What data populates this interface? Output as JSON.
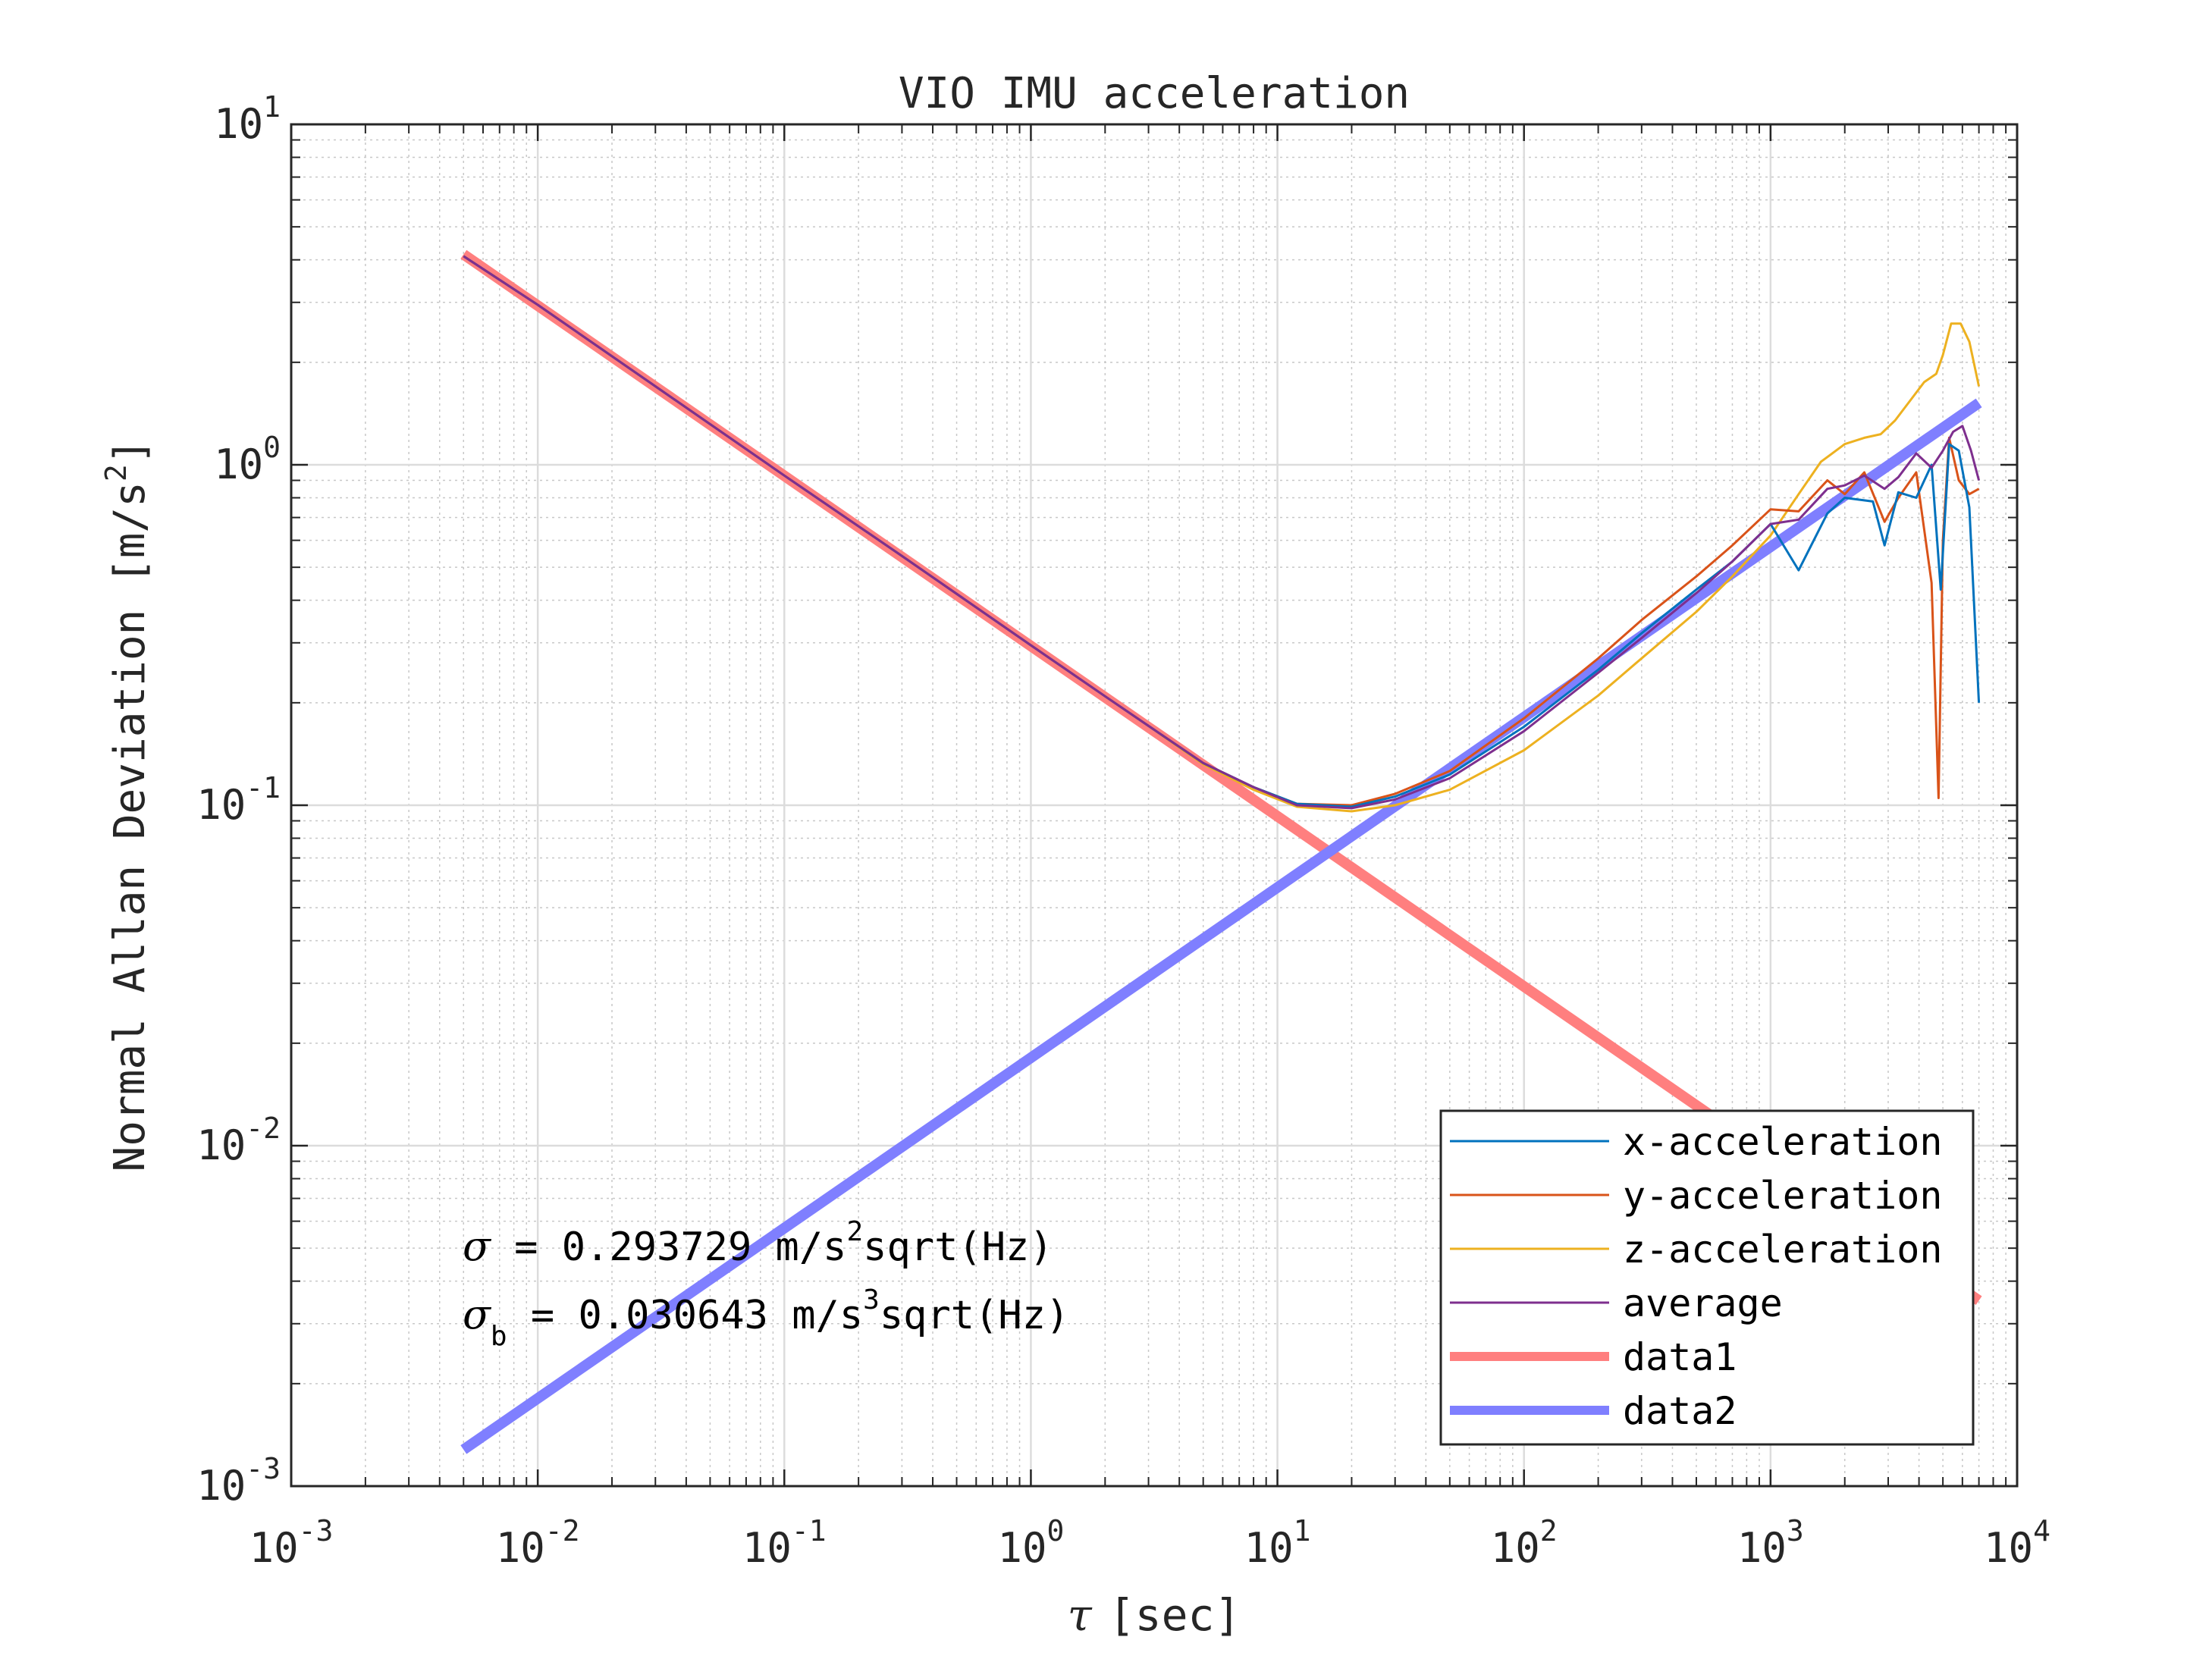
{
  "chart_data": {
    "type": "line",
    "title": "VIO IMU acceleration",
    "xlabel_symbol": "τ",
    "xlabel": "[sec]",
    "ylabel": "Normal Allan Deviation [m/s",
    "ylabel_sup": "2",
    "ylabel_end": "]",
    "x_scale": "log",
    "y_scale": "log",
    "xlim": [
      0.001,
      10000
    ],
    "ylim": [
      0.001,
      10
    ],
    "grid": true,
    "minor_grid": true,
    "legend_position": "bottom-right",
    "x_ticks": [
      {
        "base": "10",
        "exp": "-3",
        "value": 0.001
      },
      {
        "base": "10",
        "exp": "-2",
        "value": 0.01
      },
      {
        "base": "10",
        "exp": "-1",
        "value": 0.1
      },
      {
        "base": "10",
        "exp": "0",
        "value": 1
      },
      {
        "base": "10",
        "exp": "1",
        "value": 10
      },
      {
        "base": "10",
        "exp": "2",
        "value": 100
      },
      {
        "base": "10",
        "exp": "3",
        "value": 1000
      },
      {
        "base": "10",
        "exp": "4",
        "value": 10000
      }
    ],
    "y_ticks": [
      {
        "base": "10",
        "exp": "-3",
        "value": 0.001
      },
      {
        "base": "10",
        "exp": "-2",
        "value": 0.01
      },
      {
        "base": "10",
        "exp": "-1",
        "value": 0.1
      },
      {
        "base": "10",
        "exp": "0",
        "value": 1
      },
      {
        "base": "10",
        "exp": "1",
        "value": 10
      }
    ],
    "annotations": [
      {
        "symbol": "σ",
        "sub": "",
        "text1": " = 0.293729 m/s",
        "sup": "2",
        "text2": "sqrt(Hz)"
      },
      {
        "symbol": "σ",
        "sub": "b",
        "text1": " = 0.030643 m/s",
        "sup": "3",
        "text2": "sqrt(Hz)"
      }
    ],
    "series": [
      {
        "name": "x-acceleration",
        "color": "#0072bd",
        "x": [
          0.005,
          0.01,
          0.03,
          0.1,
          0.3,
          1,
          2,
          3,
          5,
          8,
          12,
          20,
          30,
          50,
          100,
          200,
          300,
          500,
          700,
          1000,
          1300,
          1700,
          2000,
          2600,
          2900,
          3300,
          3900,
          4500,
          4900,
          5300,
          5800,
          6400,
          7000
        ],
        "y": [
          4.1,
          2.95,
          1.7,
          0.93,
          0.54,
          0.295,
          0.209,
          0.171,
          0.133,
          0.113,
          0.101,
          0.099,
          0.106,
          0.123,
          0.17,
          0.25,
          0.32,
          0.43,
          0.52,
          0.67,
          0.49,
          0.72,
          0.8,
          0.78,
          0.58,
          0.83,
          0.8,
          1.0,
          0.43,
          1.15,
          1.1,
          0.75,
          0.2
        ]
      },
      {
        "name": "y-acceleration",
        "color": "#d95319",
        "x": [
          0.005,
          0.01,
          0.03,
          0.1,
          0.3,
          1,
          2,
          3,
          5,
          8,
          12,
          20,
          30,
          50,
          100,
          200,
          300,
          500,
          700,
          1000,
          1300,
          1700,
          2000,
          2400,
          2900,
          3300,
          3900,
          4500,
          4800,
          5000,
          5300,
          5800,
          6400,
          7000
        ],
        "y": [
          4.1,
          2.95,
          1.7,
          0.93,
          0.54,
          0.295,
          0.209,
          0.171,
          0.133,
          0.113,
          0.101,
          0.1,
          0.108,
          0.126,
          0.18,
          0.27,
          0.35,
          0.47,
          0.58,
          0.74,
          0.73,
          0.9,
          0.82,
          0.95,
          0.68,
          0.8,
          0.95,
          0.45,
          0.105,
          0.6,
          1.2,
          0.9,
          0.82,
          0.85
        ]
      },
      {
        "name": "z-acceleration",
        "color": "#edb120",
        "x": [
          0.005,
          0.01,
          0.03,
          0.1,
          0.3,
          1,
          2,
          3,
          5,
          8,
          12,
          20,
          30,
          50,
          100,
          200,
          300,
          500,
          700,
          1000,
          1300,
          1600,
          2000,
          2400,
          2800,
          3200,
          3700,
          4200,
          4700,
          5000,
          5400,
          5900,
          6400,
          7000
        ],
        "y": [
          4.1,
          2.95,
          1.7,
          0.93,
          0.54,
          0.295,
          0.209,
          0.171,
          0.132,
          0.111,
          0.099,
          0.096,
          0.1,
          0.111,
          0.145,
          0.21,
          0.27,
          0.37,
          0.47,
          0.62,
          0.82,
          1.02,
          1.15,
          1.2,
          1.23,
          1.35,
          1.55,
          1.75,
          1.85,
          2.1,
          2.6,
          2.6,
          2.3,
          1.7
        ]
      },
      {
        "name": "average",
        "color": "#7e2f8e",
        "x": [
          0.005,
          0.01,
          0.03,
          0.1,
          0.3,
          1,
          2,
          3,
          5,
          8,
          12,
          20,
          30,
          50,
          100,
          200,
          300,
          500,
          700,
          1000,
          1300,
          1700,
          2000,
          2400,
          2900,
          3300,
          3900,
          4500,
          5000,
          5500,
          6000,
          6500,
          7000
        ],
        "y": [
          4.1,
          2.95,
          1.7,
          0.93,
          0.54,
          0.295,
          0.209,
          0.171,
          0.133,
          0.113,
          0.1,
          0.098,
          0.104,
          0.12,
          0.165,
          0.245,
          0.31,
          0.42,
          0.52,
          0.67,
          0.69,
          0.85,
          0.87,
          0.93,
          0.85,
          0.92,
          1.08,
          0.98,
          1.1,
          1.25,
          1.3,
          1.1,
          0.9
        ]
      },
      {
        "name": "data1",
        "color": "#ff7f7f",
        "x": [
          0.005,
          7000
        ],
        "y": [
          4.15,
          0.00351
        ]
      },
      {
        "name": "data2",
        "color": "#7f7fff",
        "x": [
          0.005,
          7000
        ],
        "y": [
          0.00128,
          1.52
        ]
      }
    ]
  }
}
